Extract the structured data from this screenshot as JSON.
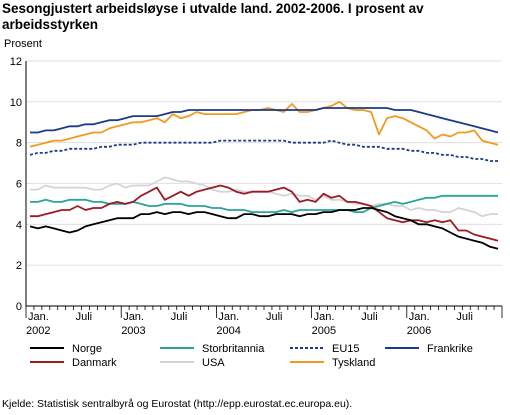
{
  "header": {
    "title": "Sesongjustert arbeidsløyse i utvalde land. 2002-2006. I prosent av arbeidsstyrken"
  },
  "footer": {
    "source": "Kjelde: Statistisk sentralbyrå og Eurostat (http://epp.eurostat.ec.europa.eu)."
  },
  "chart_data": {
    "type": "line",
    "title": "Sesongjustert arbeidsløyse i utvalde land. 2002-2006. I prosent av arbeidsstyrken",
    "ylabel": "Prosent",
    "xlabel": "",
    "ylim": [
      0,
      12
    ],
    "yticks": [
      0,
      2,
      4,
      6,
      8,
      10,
      12
    ],
    "x_start": "2002-01",
    "x_count": 60,
    "x_tick_labels": [
      {
        "i": 0,
        "line1": "Jan.",
        "line2": "2002"
      },
      {
        "i": 6,
        "line1": "Juli",
        "line2": ""
      },
      {
        "i": 12,
        "line1": "Jan.",
        "line2": "2003"
      },
      {
        "i": 18,
        "line1": "Juli",
        "line2": ""
      },
      {
        "i": 24,
        "line1": "Jan.",
        "line2": "2004"
      },
      {
        "i": 30,
        "line1": "Juli",
        "line2": ""
      },
      {
        "i": 36,
        "line1": "Jan.",
        "line2": "2005"
      },
      {
        "i": 42,
        "line1": "Juli",
        "line2": ""
      },
      {
        "i": 48,
        "line1": "Jan.",
        "line2": "2006"
      },
      {
        "i": 54,
        "line1": "Juli",
        "line2": ""
      }
    ],
    "grid": "horizontal",
    "legend_position": "bottom",
    "series": [
      {
        "name": "Norge",
        "color": "#000000",
        "dash": "",
        "values": [
          3.9,
          3.8,
          3.9,
          3.8,
          3.7,
          3.6,
          3.7,
          3.9,
          4.0,
          4.1,
          4.2,
          4.3,
          4.3,
          4.3,
          4.5,
          4.5,
          4.6,
          4.5,
          4.6,
          4.6,
          4.5,
          4.6,
          4.6,
          4.5,
          4.4,
          4.3,
          4.3,
          4.5,
          4.5,
          4.4,
          4.4,
          4.5,
          4.5,
          4.5,
          4.4,
          4.5,
          4.5,
          4.6,
          4.6,
          4.7,
          4.7,
          4.7,
          4.8,
          4.8,
          4.7,
          4.6,
          4.4,
          4.3,
          4.2,
          4.0,
          4.0,
          3.9,
          3.8,
          3.6,
          3.4,
          3.3,
          3.2,
          3.1,
          2.9,
          2.8
        ]
      },
      {
        "name": "Danmark",
        "color": "#9b1b23",
        "dash": "",
        "values": [
          4.4,
          4.4,
          4.5,
          4.6,
          4.7,
          4.7,
          4.9,
          4.7,
          4.8,
          4.8,
          5.0,
          5.1,
          5.0,
          5.1,
          5.4,
          5.6,
          5.8,
          5.2,
          5.4,
          5.6,
          5.4,
          5.6,
          5.7,
          5.8,
          5.9,
          5.8,
          5.6,
          5.5,
          5.6,
          5.6,
          5.6,
          5.7,
          5.8,
          5.6,
          5.1,
          5.2,
          5.1,
          5.5,
          5.3,
          5.4,
          5.1,
          5.1,
          5.0,
          4.9,
          4.6,
          4.3,
          4.2,
          4.1,
          4.2,
          4.2,
          4.1,
          4.2,
          4.1,
          4.2,
          3.7,
          3.7,
          3.5,
          3.4,
          3.3,
          3.2
        ]
      },
      {
        "name": "Storbritannia",
        "color": "#2aa39b",
        "dash": "",
        "values": [
          5.1,
          5.1,
          5.2,
          5.1,
          5.1,
          5.2,
          5.2,
          5.2,
          5.1,
          5.1,
          5.0,
          5.0,
          5.0,
          5.1,
          5.0,
          4.9,
          4.9,
          5.0,
          5.0,
          5.0,
          4.9,
          4.9,
          4.9,
          4.8,
          4.8,
          4.7,
          4.7,
          4.7,
          4.6,
          4.6,
          4.6,
          4.6,
          4.7,
          4.6,
          4.7,
          4.7,
          4.7,
          4.7,
          4.7,
          4.7,
          4.7,
          4.6,
          4.6,
          4.8,
          4.9,
          5.0,
          5.1,
          5.0,
          5.1,
          5.2,
          5.3,
          5.3,
          5.4,
          5.4,
          5.4,
          5.4,
          5.4,
          5.4,
          5.4,
          5.4
        ]
      },
      {
        "name": "USA",
        "color": "#d4d4d4",
        "dash": "",
        "values": [
          5.7,
          5.7,
          5.9,
          5.8,
          5.8,
          5.8,
          5.8,
          5.8,
          5.7,
          5.7,
          5.9,
          6.0,
          5.8,
          5.9,
          5.9,
          5.9,
          6.1,
          6.3,
          6.2,
          6.1,
          6.1,
          6.0,
          5.9,
          5.7,
          5.6,
          5.6,
          5.7,
          5.6,
          5.6,
          5.6,
          5.6,
          5.5,
          5.4,
          5.5,
          5.4,
          5.4,
          5.2,
          5.4,
          5.2,
          5.2,
          5.1,
          5.0,
          5.0,
          4.9,
          5.0,
          5.0,
          4.9,
          4.9,
          4.7,
          4.8,
          4.7,
          4.7,
          4.6,
          4.6,
          4.8,
          4.7,
          4.6,
          4.4,
          4.5,
          4.5
        ]
      },
      {
        "name": "EU15",
        "color": "#1a3a8a",
        "dash": "3,2",
        "values": [
          7.4,
          7.5,
          7.5,
          7.6,
          7.6,
          7.7,
          7.7,
          7.7,
          7.7,
          7.8,
          7.8,
          7.9,
          7.9,
          7.9,
          8.0,
          8.0,
          8.0,
          8.0,
          8.0,
          8.0,
          8.0,
          8.0,
          8.0,
          8.0,
          8.1,
          8.1,
          8.1,
          8.1,
          8.1,
          8.1,
          8.1,
          8.1,
          8.1,
          8.0,
          8.0,
          8.0,
          8.0,
          8.0,
          8.1,
          8.0,
          7.9,
          7.9,
          7.8,
          7.8,
          7.8,
          7.7,
          7.7,
          7.7,
          7.6,
          7.6,
          7.5,
          7.5,
          7.4,
          7.4,
          7.3,
          7.3,
          7.2,
          7.2,
          7.1,
          7.1
        ]
      },
      {
        "name": "Frankrike",
        "color": "#1a3a8a",
        "dash": "",
        "values": [
          8.5,
          8.5,
          8.6,
          8.6,
          8.7,
          8.8,
          8.8,
          8.9,
          8.9,
          9.0,
          9.1,
          9.1,
          9.2,
          9.3,
          9.3,
          9.3,
          9.3,
          9.4,
          9.5,
          9.5,
          9.6,
          9.6,
          9.6,
          9.6,
          9.6,
          9.6,
          9.6,
          9.6,
          9.6,
          9.6,
          9.6,
          9.6,
          9.6,
          9.6,
          9.6,
          9.6,
          9.6,
          9.7,
          9.7,
          9.7,
          9.7,
          9.7,
          9.7,
          9.7,
          9.7,
          9.7,
          9.6,
          9.6,
          9.6,
          9.5,
          9.4,
          9.3,
          9.2,
          9.1,
          9.0,
          8.9,
          8.8,
          8.7,
          8.6,
          8.5
        ]
      },
      {
        "name": "Tyskland",
        "color": "#f29a1f",
        "dash": "",
        "values": [
          7.8,
          7.9,
          8.0,
          8.1,
          8.1,
          8.2,
          8.3,
          8.4,
          8.5,
          8.5,
          8.7,
          8.8,
          8.9,
          9.0,
          9.0,
          9.1,
          9.2,
          9.0,
          9.4,
          9.2,
          9.3,
          9.5,
          9.4,
          9.4,
          9.4,
          9.4,
          9.4,
          9.5,
          9.6,
          9.6,
          9.7,
          9.6,
          9.5,
          9.9,
          9.5,
          9.5,
          9.6,
          9.7,
          9.8,
          10.0,
          9.7,
          9.6,
          9.6,
          9.5,
          8.4,
          9.2,
          9.3,
          9.2,
          9.0,
          8.8,
          8.6,
          8.2,
          8.4,
          8.3,
          8.5,
          8.5,
          8.6,
          8.1,
          8.0,
          7.9
        ]
      }
    ]
  }
}
